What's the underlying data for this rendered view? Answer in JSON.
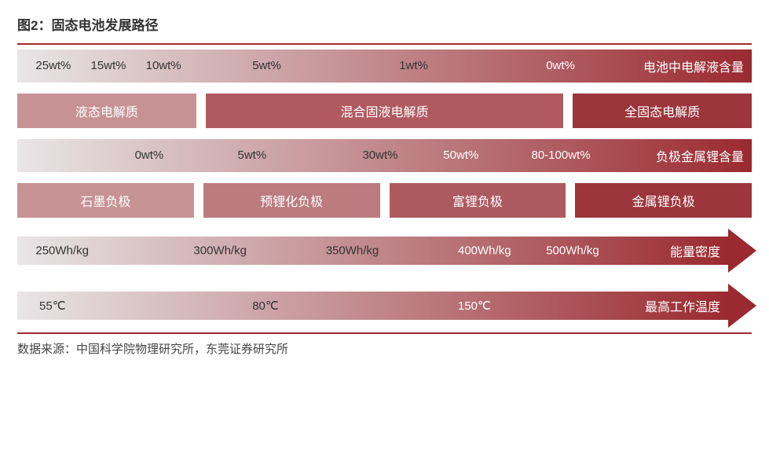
{
  "title": "图2：固态电池发展路径",
  "source": "数据来源：中国科学院物理研究所，东莞证券研究所",
  "colors": {
    "accent": "#a42a2f",
    "grad_light": "#e8e6e7",
    "grad_dark": "#9a2a30",
    "seg_light": "#d3a8a9",
    "seg_mid1": "#c4898c",
    "seg_mid2": "#b86a6f",
    "seg_dark": "#9f3d43",
    "text_dark": "#333333",
    "text_light": "#ffffff"
  },
  "row1": {
    "type": "gradient-bar",
    "gradient_from": "#e8e6e7",
    "gradient_to": "#9a2a30",
    "end_label": "电池中电解液含量",
    "labels": [
      {
        "text": "25wt%",
        "left_pct": 2.5,
        "light": false
      },
      {
        "text": "15wt%",
        "left_pct": 10,
        "light": false
      },
      {
        "text": "10wt%",
        "left_pct": 17.5,
        "light": false
      },
      {
        "text": "5wt%",
        "left_pct": 32,
        "light": false
      },
      {
        "text": "1wt%",
        "left_pct": 52,
        "light": false
      },
      {
        "text": "0wt%",
        "left_pct": 72,
        "light": true
      }
    ]
  },
  "row2": {
    "type": "segments",
    "segments": [
      {
        "label": "液态电解质",
        "bg": "#c79294",
        "flex": 1
      },
      {
        "label": "混合固液电解质",
        "bg": "#b05a5f",
        "flex": 2
      },
      {
        "label": "全固态电解质",
        "bg": "#9c363c",
        "flex": 1
      }
    ]
  },
  "row3": {
    "type": "gradient-bar",
    "gradient_from": "#e8e6e7",
    "gradient_to": "#9a2a30",
    "end_label": "负极金属锂含量",
    "labels": [
      {
        "text": "0wt%",
        "left_pct": 16,
        "light": false
      },
      {
        "text": "5wt%",
        "left_pct": 30,
        "light": false
      },
      {
        "text": "30wt%",
        "left_pct": 47,
        "light": false
      },
      {
        "text": "50wt%",
        "left_pct": 58,
        "light": true
      },
      {
        "text": "80-100wt%",
        "left_pct": 70,
        "light": true
      }
    ]
  },
  "row4": {
    "type": "segments",
    "segments": [
      {
        "label": "石墨负极",
        "bg": "#c79294",
        "flex": 1
      },
      {
        "label": "预锂化负极",
        "bg": "#bb7b7f",
        "flex": 1
      },
      {
        "label": "富锂负极",
        "bg": "#ad5a5f",
        "flex": 1
      },
      {
        "label": "金属锂负极",
        "bg": "#9c363c",
        "flex": 1
      }
    ]
  },
  "row5": {
    "type": "arrow",
    "gradient_from": "#e8e6e7",
    "gradient_to": "#9a2a30",
    "head_color": "#9a2a30",
    "end_label": "能量密度",
    "labels": [
      {
        "text": "250Wh/kg",
        "left_pct": 2.5,
        "light": false
      },
      {
        "text": "300Wh/kg",
        "left_pct": 24,
        "light": false
      },
      {
        "text": "350Wh/kg",
        "left_pct": 42,
        "light": false
      },
      {
        "text": "400Wh/kg",
        "left_pct": 60,
        "light": true
      },
      {
        "text": "500Wh/kg",
        "left_pct": 72,
        "light": true
      }
    ]
  },
  "row6": {
    "type": "arrow",
    "gradient_from": "#e8e6e7",
    "gradient_to": "#9a2a30",
    "head_color": "#9a2a30",
    "end_label": "最高工作温度",
    "labels": [
      {
        "text": "55℃",
        "left_pct": 3,
        "light": false
      },
      {
        "text": "80℃",
        "left_pct": 32,
        "light": false
      },
      {
        "text": "150℃",
        "left_pct": 60,
        "light": true
      }
    ]
  }
}
